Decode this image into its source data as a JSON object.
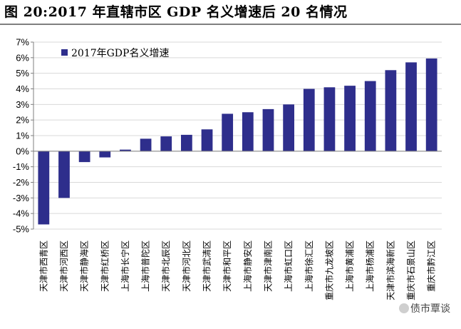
{
  "title": "图 20:2017 年直辖市区 GDP 名义增速后 20 名情况",
  "watermark": "债市覃谈",
  "colors": {
    "bar": "#2e2e8c",
    "grid": "#d9d9d9",
    "axis": "#7f7f7f"
  },
  "chart_data": {
    "type": "bar",
    "title": "",
    "legend": "2017年GDP名义增速",
    "legend_position": "top-left",
    "ylim": [
      -5,
      7
    ],
    "ytick_step": 1,
    "ytick_labels": [
      "7%",
      "6%",
      "5%",
      "4%",
      "3%",
      "2%",
      "1%",
      "0%",
      "-1%",
      "-2%",
      "-3%",
      "-4%",
      "-5%"
    ],
    "grid": true,
    "categories": [
      "天津市西青区",
      "天津市河西区",
      "天津市静海区",
      "天津市红桥区",
      "上海市长宁区",
      "上海市普陀区",
      "天津市北辰区",
      "天津市河北区",
      "天津市武清区",
      "天津市和平区",
      "上海市静安区",
      "天津市津南区",
      "上海市虹口区",
      "上海市徐汇区",
      "重庆市九龙坡区",
      "上海市黄浦区",
      "上海市杨浦区",
      "天津市滨海新区",
      "重庆市石景山区",
      "重庆市黔江区"
    ],
    "values": [
      -4.7,
      -3.0,
      -0.7,
      -0.4,
      0.1,
      0.8,
      0.95,
      1.05,
      1.4,
      2.4,
      2.5,
      2.7,
      3.0,
      4.0,
      4.1,
      4.2,
      4.5,
      5.2,
      5.7,
      5.95
    ]
  }
}
